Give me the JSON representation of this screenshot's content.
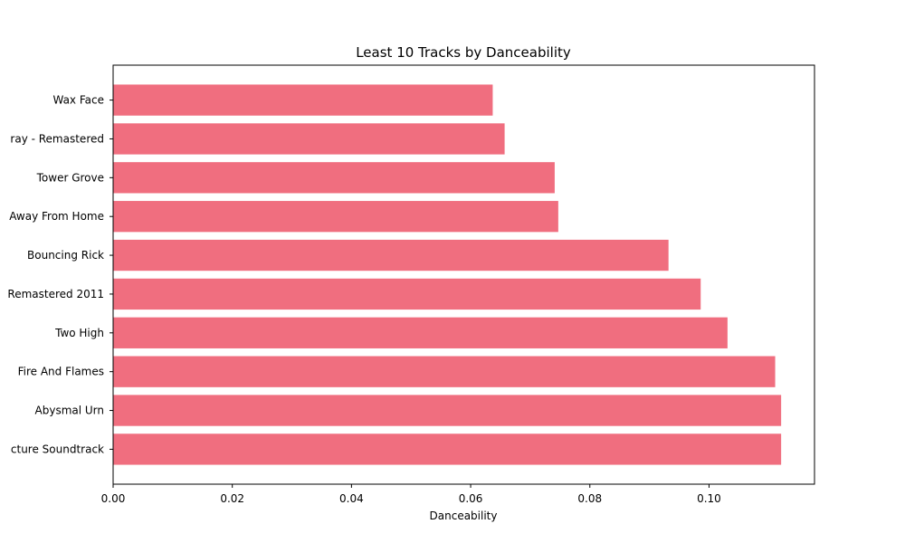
{
  "chart_data": {
    "type": "bar",
    "orientation": "horizontal",
    "title": "Least 10 Tracks by Danceability",
    "xlabel": "Danceability",
    "ylabel": "",
    "categories": [
      "Wax Face",
      "ray - Remastered",
      "Tower Grove",
      "Away From Home",
      "Bouncing Rick",
      "Remastered 2011",
      "Two High",
      "Fire And Flames",
      "Abysmal Urn",
      "cture Soundtrack"
    ],
    "values": [
      0.0637,
      0.0657,
      0.0741,
      0.0747,
      0.0932,
      0.0986,
      0.1031,
      0.1111,
      0.1121,
      0.1121
    ],
    "xlim": [
      0.0,
      0.1177
    ],
    "xticks": [
      0.0,
      0.02,
      0.04,
      0.06,
      0.08,
      0.1
    ],
    "xtick_labels": [
      "0.00",
      "0.02",
      "0.04",
      "0.06",
      "0.08",
      "0.10"
    ],
    "bar_color": "#f06e7f",
    "grid": false,
    "legend": "none"
  }
}
